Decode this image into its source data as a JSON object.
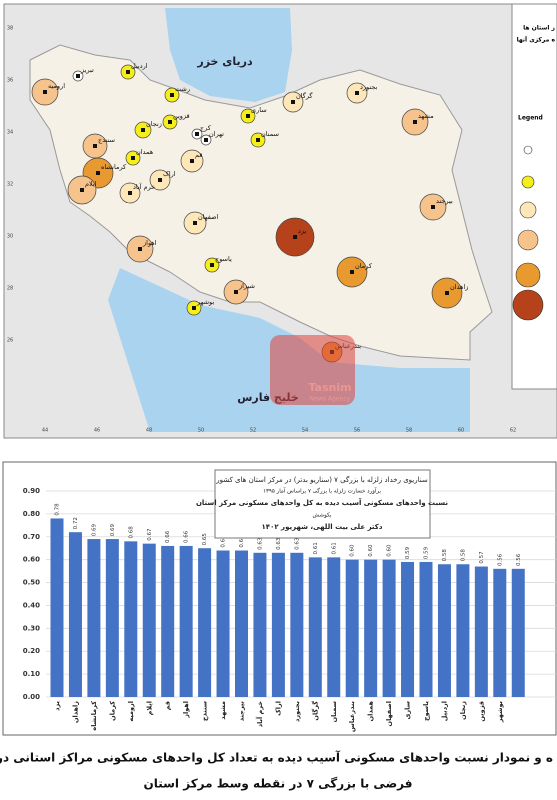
{
  "map": {
    "seas": [
      "دریای خزر",
      "خلیج فارس"
    ],
    "legend_heading": [
      "ز استان ها",
      "ه مرکزی آنها"
    ],
    "legend_title": "Legend",
    "legend_colors": [
      "#ffffff",
      "#f5ee1a",
      "#fde6b8",
      "#f6c38c",
      "#e8992f",
      "#b5421b"
    ],
    "watermark": [
      "Tasnim",
      "News Agency"
    ],
    "lon_ticks": [
      "44",
      "46",
      "48",
      "50",
      "52",
      "54",
      "56",
      "58",
      "60",
      "62"
    ],
    "lat_ticks": [
      "38",
      "36",
      "34",
      "32",
      "30",
      "28",
      "26"
    ],
    "cities": [
      {
        "name": "تبریز",
        "color": "#ffffff"
      },
      {
        "name": "اردبیل",
        "color": "#f5ee1a"
      },
      {
        "name": "ارومیه",
        "color": "#f6c38c"
      },
      {
        "name": "رشت",
        "color": "#f5ee1a"
      },
      {
        "name": "زنجان",
        "color": "#f5ee1a"
      },
      {
        "name": "قزوین",
        "color": "#f5ee1a"
      },
      {
        "name": "کرج",
        "color": "#ffffff"
      },
      {
        "name": "تهران",
        "color": "#ffffff"
      },
      {
        "name": "ساری",
        "color": "#f5ee1a"
      },
      {
        "name": "گرگان",
        "color": "#fde6b8"
      },
      {
        "name": "بجنورد",
        "color": "#fde6b8"
      },
      {
        "name": "مشهد",
        "color": "#f6c38c"
      },
      {
        "name": "سمنان",
        "color": "#f5ee1a"
      },
      {
        "name": "سنندج",
        "color": "#f6c38c"
      },
      {
        "name": "همدان",
        "color": "#f5ee1a"
      },
      {
        "name": "کرمانشاه",
        "color": "#e8992f"
      },
      {
        "name": "قم",
        "color": "#fde6b8"
      },
      {
        "name": "اراک",
        "color": "#fde6b8"
      },
      {
        "name": "ایلام",
        "color": "#f6c38c"
      },
      {
        "name": "خرم آباد",
        "color": "#fde6b8"
      },
      {
        "name": "اصفهان",
        "color": "#fde6b8"
      },
      {
        "name": "بیرجند",
        "color": "#f6c38c"
      },
      {
        "name": "یزد",
        "color": "#b5421b"
      },
      {
        "name": "اهواز",
        "color": "#f6c38c"
      },
      {
        "name": "یاسوج",
        "color": "#f5ee1a"
      },
      {
        "name": "کرمان",
        "color": "#e8992f"
      },
      {
        "name": "زاهدان",
        "color": "#e8992f"
      },
      {
        "name": "شیراز",
        "color": "#f6c38c"
      },
      {
        "name": "بوشهر",
        "color": "#f5ee1a"
      },
      {
        "name": "بندرعباس",
        "color": "#e8992f"
      }
    ]
  },
  "chart_data": {
    "type": "bar",
    "title_lines": [
      "سناریوی رخداد زلزله با بزرگی ۷ (سناریو بدتر) در مرکز استان های کشور",
      "برآورد خسارت زلزله با بزرگی ۷ براساس آمار ۱۳۹۵",
      "نسبت واحدهای مسکونی آسیب دیده به کل واحدهای مسکونی مرکز استان",
      "بکوشش",
      "دکتر علی بیت اللهی، شهریور ۱۴۰۲"
    ],
    "categories": [
      "یزد",
      "زاهدان",
      "کرمانشاه",
      "کرمان",
      "ارومیه",
      "ایلام",
      "قم",
      "اهواز",
      "سنندج",
      "مشهد",
      "بیرجند",
      "خرم آباد",
      "اراک",
      "بجنورد",
      "گرگان",
      "سمنان",
      "بندرعباس",
      "همدان",
      "اصفهان",
      "ساری",
      "یاسوج",
      "اردبیل",
      "زنجان",
      "قزوین",
      "بوشهر",
      null
    ],
    "values": [
      0.78,
      0.72,
      0.69,
      0.69,
      0.68,
      0.67,
      0.66,
      0.66,
      0.65,
      0.64,
      0.64,
      0.63,
      0.63,
      0.63,
      0.61,
      0.61,
      0.6,
      0.6,
      0.6,
      0.59,
      0.59,
      0.58,
      0.58,
      0.57,
      0.56,
      0.56
    ],
    "value_labels": [
      "0.78",
      "0.72",
      "0.69",
      "0.69",
      "0.68",
      "0.67",
      "0.66",
      "0.66",
      "0.65",
      "0.64",
      "0.64",
      "0.63",
      "0.63",
      "0.63",
      "0.61",
      "0.61",
      "0.60",
      "0.60",
      "0.60",
      "0.59",
      "0.59",
      "0.58",
      "0.58",
      "0.57",
      "0.56",
      "0.56"
    ],
    "color": "#4472c4",
    "ylim": [
      0,
      0.9
    ],
    "yticks": [
      {
        "value": 0,
        "label": "0.00"
      },
      {
        "value": 0.1,
        "label": "0.10"
      },
      {
        "value": 0.2,
        "label": "0.20"
      },
      {
        "value": 0.3,
        "label": "0.30"
      },
      {
        "value": 0.4,
        "label": "0.40"
      },
      {
        "value": 0.5,
        "label": "0.50"
      },
      {
        "value": 0.6,
        "label": "0.60"
      },
      {
        "value": 0.7,
        "label": "0.70"
      },
      {
        "value": 0.8,
        "label": "0.80"
      },
      {
        "value": 0.9,
        "label": "0.90"
      }
    ],
    "grid": true
  },
  "caption": [
    "ه و نمودار نسبت واحدهای مسکونی آسیب دیده به تعداد کل واحدهای مسکونی مراکز استانی در زلزله",
    "فرضی با بزرگی ۷ در نقطه وسط مرکز استان"
  ]
}
